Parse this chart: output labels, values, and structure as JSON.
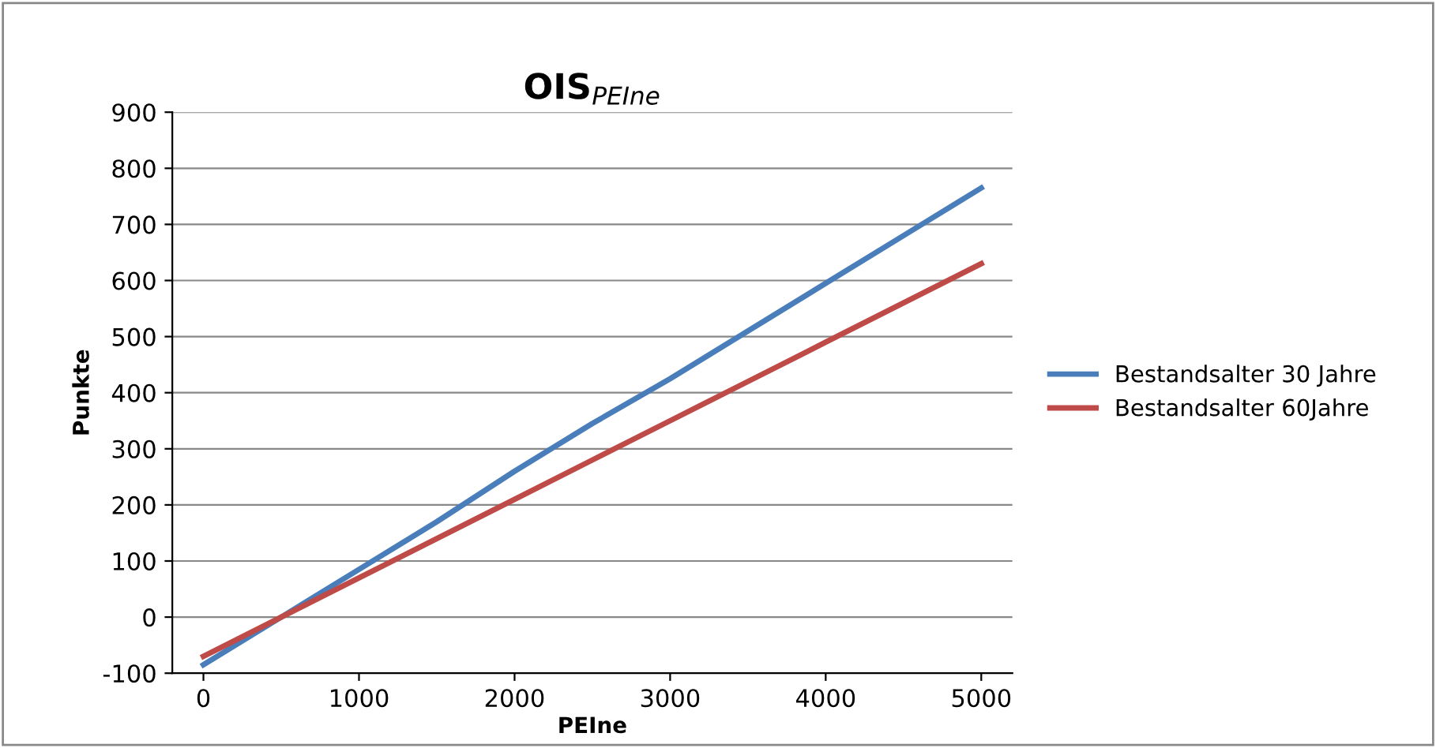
{
  "chart_data": {
    "type": "line",
    "title": "OIS$_{PEIne}$",
    "xlabel": "PEIne",
    "ylabel": "Punkte",
    "x": [
      0,
      500,
      1000,
      1500,
      2000,
      2500,
      3000,
      3500,
      4000,
      4500,
      5000
    ],
    "series": [
      {
        "name": "Bestandsalter 30 Jahre",
        "color": "#4a7ebb",
        "values": [
          -85,
          0,
          85,
          170,
          260,
          345,
          425,
          510,
          595,
          680,
          765
        ]
      },
      {
        "name": "Bestandsalter 60Jahre",
        "color": "#be4b48",
        "values": [
          -70,
          0,
          70,
          140,
          210,
          280,
          350,
          420,
          490,
          560,
          630
        ]
      }
    ],
    "xlim": [
      -200,
      5200
    ],
    "xticks": [
      0,
      1000,
      2000,
      3000,
      4000,
      5000
    ],
    "ylim": [
      -100,
      900
    ],
    "yticks": [
      -100,
      0,
      100,
      200,
      300,
      400,
      500,
      600,
      700,
      800,
      900
    ],
    "grid": "y",
    "legend": "right",
    "marker": "none",
    "line_style": "solid"
  }
}
